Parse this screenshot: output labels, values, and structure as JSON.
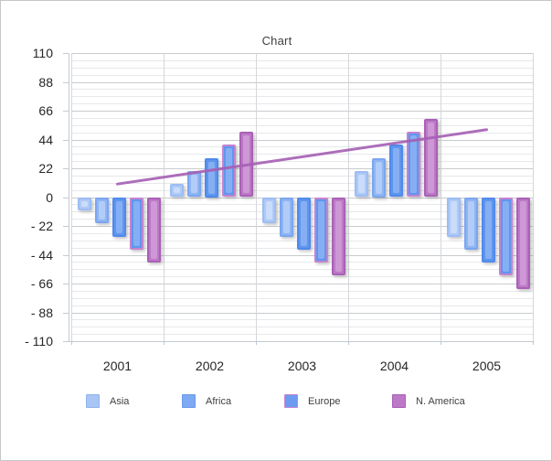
{
  "title": "Chart",
  "colors": {
    "gridline_major": "#c8cbce",
    "gridline_minor": "#e6e8ea",
    "category_divider": "#d4d7da",
    "axis": "#c5cbd2",
    "label_text": "#262626",
    "title_text": "#3f3f3f",
    "trend_line": "#a55fb4"
  },
  "y_axis": {
    "labels": [
      "110",
      "88",
      "66",
      "44",
      "22",
      "0",
      "- 22",
      "- 44",
      "- 66",
      "- 88",
      "- 110"
    ],
    "values": [
      110,
      88,
      66,
      44,
      22,
      0,
      -22,
      -44,
      -66,
      -88,
      -110
    ],
    "major_step": 22,
    "minor_step": 5.5,
    "min": -110,
    "max": 110
  },
  "x_axis": {
    "categories": [
      "2001",
      "2002",
      "2003",
      "2004",
      "2005"
    ]
  },
  "legend": {
    "position": "bottom",
    "items": [
      {
        "label": "Asia",
        "fill": "#a9c5f3",
        "border": "#8fb3ee",
        "series_index": 0
      },
      {
        "label": "Africa",
        "fill": "#7fa9f0",
        "border": "#6a9aee",
        "series_index": 1
      },
      {
        "label": "Europe",
        "fill": "#6d9bf0",
        "border": "#c583d1",
        "series_index": 3
      },
      {
        "label": "N. America",
        "fill": "#bc79c6",
        "border": "#aa60b6",
        "series_index": 4
      }
    ]
  },
  "chart_data": {
    "type": "bar",
    "title": "Chart",
    "categories": [
      "2001",
      "2002",
      "2003",
      "2004",
      "2005"
    ],
    "ylim": [
      -110,
      110
    ],
    "grid": true,
    "legend_position": "bottom",
    "series": [
      {
        "name": "Asia",
        "fill": "#afc9f5",
        "highlight": "#cadcfb",
        "border": "#9cbdf4",
        "values": [
          -10,
          10,
          -20,
          20,
          -30
        ]
      },
      {
        "name": "Africa",
        "fill": "#8fb5f3",
        "highlight": "#b2ccf8",
        "border": "#7ba6f0",
        "values": [
          -20,
          20,
          -30,
          30,
          -40
        ]
      },
      {
        "name": "",
        "fill": "#5f96ee",
        "highlight": "#86aff3",
        "border": "#4f8aec",
        "values": [
          -30,
          30,
          -40,
          40,
          -50
        ]
      },
      {
        "name": "Europe",
        "fill": "#5f96ee",
        "highlight": "#86aff3",
        "border": "#c583d1",
        "values": [
          -40,
          40,
          -50,
          50,
          -60
        ]
      },
      {
        "name": "N. America",
        "fill": "#bc79c6",
        "highlight": "#ce97d6",
        "border": "#aa60b6",
        "values": [
          -50,
          50,
          -60,
          60,
          -70
        ]
      }
    ],
    "trend_line": {
      "color": "#a55fb4",
      "points": [
        {
          "x": "2001",
          "y": 10
        },
        {
          "x": "2005",
          "y": 51.5
        }
      ]
    }
  }
}
